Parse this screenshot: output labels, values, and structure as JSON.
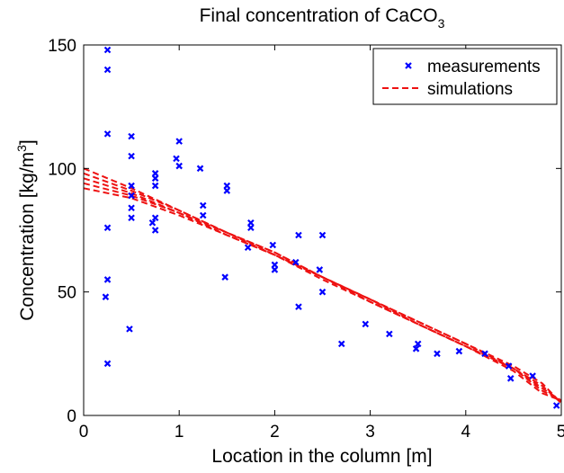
{
  "chart_data": {
    "type": "scatter",
    "title": "Final concentration of CaCO",
    "title_subscript": "3",
    "xlabel": "Location in the column [m]",
    "ylabel": "Concentration [kg/m",
    "ylabel_superscript": "3",
    "ylabel_close": "]",
    "xlim": [
      0,
      5
    ],
    "ylim": [
      0,
      150
    ],
    "xticks": [
      0,
      1,
      2,
      3,
      4,
      5
    ],
    "yticks": [
      0,
      50,
      100,
      150
    ],
    "grid": false,
    "legend_position": "top-right",
    "colors": {
      "measurements": "#0000ff",
      "simulations": "#ee1111"
    },
    "series": [
      {
        "name": "measurements",
        "style": "markers-x",
        "points": [
          [
            0.23,
            48
          ],
          [
            0.25,
            148
          ],
          [
            0.25,
            140
          ],
          [
            0.25,
            114
          ],
          [
            0.25,
            76
          ],
          [
            0.25,
            55
          ],
          [
            0.25,
            21
          ],
          [
            0.48,
            35
          ],
          [
            0.5,
            113
          ],
          [
            0.5,
            105
          ],
          [
            0.5,
            93
          ],
          [
            0.5,
            89
          ],
          [
            0.5,
            84
          ],
          [
            0.5,
            80
          ],
          [
            0.75,
            98
          ],
          [
            0.75,
            96
          ],
          [
            0.75,
            93
          ],
          [
            0.75,
            80
          ],
          [
            0.72,
            78
          ],
          [
            0.75,
            75
          ],
          [
            0.97,
            104
          ],
          [
            1.0,
            111
          ],
          [
            1.0,
            101
          ],
          [
            1.22,
            100
          ],
          [
            1.25,
            85
          ],
          [
            1.25,
            81
          ],
          [
            1.48,
            56
          ],
          [
            1.5,
            93
          ],
          [
            1.5,
            91
          ],
          [
            1.72,
            68
          ],
          [
            1.75,
            78
          ],
          [
            1.75,
            76
          ],
          [
            1.98,
            69
          ],
          [
            2.0,
            61
          ],
          [
            2.0,
            59
          ],
          [
            2.22,
            62
          ],
          [
            2.25,
            73
          ],
          [
            2.25,
            44
          ],
          [
            2.47,
            59
          ],
          [
            2.5,
            73
          ],
          [
            2.5,
            50
          ],
          [
            2.7,
            29
          ],
          [
            2.95,
            37
          ],
          [
            3.2,
            33
          ],
          [
            3.48,
            27
          ],
          [
            3.5,
            29
          ],
          [
            3.7,
            25
          ],
          [
            3.93,
            26
          ],
          [
            4.2,
            25
          ],
          [
            4.45,
            20
          ],
          [
            4.47,
            15
          ],
          [
            4.7,
            16
          ],
          [
            4.95,
            4
          ]
        ]
      },
      {
        "name": "simulations",
        "style": "dashed",
        "curves": [
          [
            [
              0,
              100
            ],
            [
              0.5,
              92
            ],
            [
              1,
              83
            ],
            [
              1.5,
              74
            ],
            [
              2,
              66
            ],
            [
              2.5,
              56
            ],
            [
              3,
              47
            ],
            [
              3.5,
              38
            ],
            [
              4,
              29
            ],
            [
              4.5,
              20
            ],
            [
              4.8,
              13
            ],
            [
              5,
              5
            ]
          ],
          [
            [
              0,
              98
            ],
            [
              0.5,
              91
            ],
            [
              1,
              83
            ],
            [
              1.5,
              74
            ],
            [
              2,
              66
            ],
            [
              2.5,
              56
            ],
            [
              3,
              47
            ],
            [
              3.5,
              38
            ],
            [
              4,
              29
            ],
            [
              4.5,
              19
            ],
            [
              4.8,
              12
            ],
            [
              5,
              5
            ]
          ],
          [
            [
              0,
              96
            ],
            [
              0.5,
              90
            ],
            [
              1,
              82
            ],
            [
              1.5,
              74
            ],
            [
              2,
              65
            ],
            [
              2.5,
              56
            ],
            [
              3,
              47
            ],
            [
              3.5,
              37
            ],
            [
              4,
              28
            ],
            [
              4.5,
              19
            ],
            [
              4.8,
              11
            ],
            [
              5,
              6
            ]
          ],
          [
            [
              0,
              94
            ],
            [
              0.5,
              89
            ],
            [
              1,
              82
            ],
            [
              1.5,
              73
            ],
            [
              2,
              65
            ],
            [
              2.5,
              56
            ],
            [
              3,
              46
            ],
            [
              3.5,
              37
            ],
            [
              4,
              28
            ],
            [
              4.5,
              19
            ],
            [
              4.8,
              10
            ],
            [
              5,
              6
            ]
          ],
          [
            [
              0,
              92
            ],
            [
              0.5,
              88
            ],
            [
              1,
              81
            ],
            [
              1.5,
              73
            ],
            [
              2,
              65
            ],
            [
              2.5,
              55
            ],
            [
              3,
              46
            ],
            [
              3.5,
              37
            ],
            [
              4,
              28
            ],
            [
              4.5,
              18
            ],
            [
              4.8,
              9
            ],
            [
              5,
              6
            ]
          ]
        ]
      }
    ]
  }
}
